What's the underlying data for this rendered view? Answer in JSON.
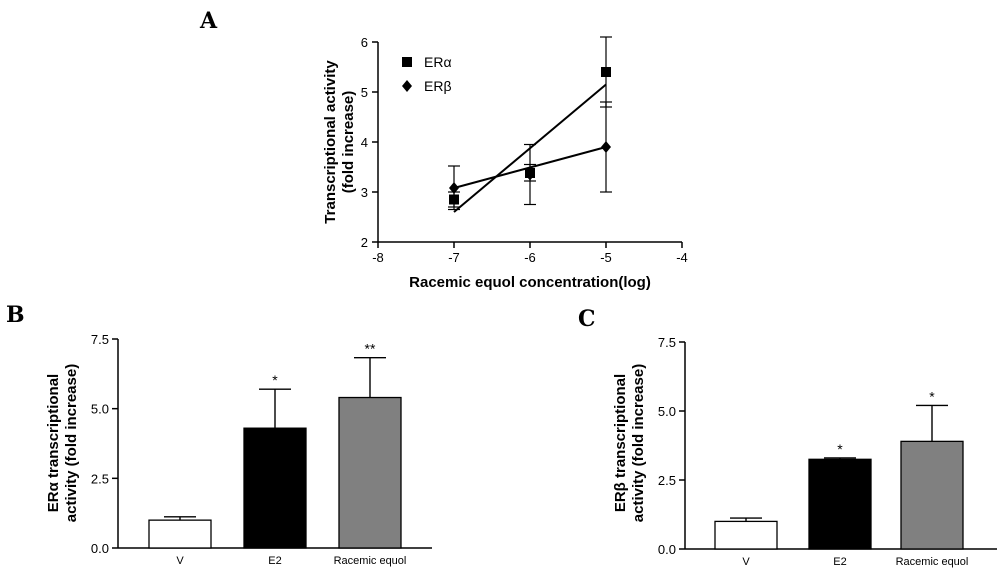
{
  "chart_data": [
    {
      "panel": "A",
      "type": "scatter",
      "xlabel": "Racemic equol concentration(log)",
      "ylabel_lines": [
        "Transcriptional activity",
        "(fold increase)"
      ],
      "xlim": [
        -8,
        -4
      ],
      "ylim": [
        2,
        6
      ],
      "xticks": [
        "-8",
        "-7",
        "-6",
        "-5",
        "-4"
      ],
      "yticks": [
        "2",
        "3",
        "4",
        "5",
        "6"
      ],
      "series": [
        {
          "name": "ERα",
          "marker": "square",
          "x": [
            -7,
            -6,
            -5
          ],
          "y": [
            2.85,
            3.38,
            5.4
          ],
          "err_low": [
            2.7,
            3.22,
            4.7
          ],
          "err_high": [
            3.0,
            3.55,
            6.1
          ],
          "fit": {
            "x": [
              -7,
              -5
            ],
            "y": [
              2.6,
              5.15
            ]
          }
        },
        {
          "name": "ERβ",
          "marker": "diamond",
          "x": [
            -7,
            -6,
            -5
          ],
          "y": [
            3.08,
            3.35,
            3.9
          ],
          "err_low": [
            2.65,
            2.75,
            3.0
          ],
          "err_high": [
            3.52,
            3.95,
            4.8
          ],
          "fit": {
            "x": [
              -7,
              -5
            ],
            "y": [
              3.08,
              3.9
            ]
          }
        }
      ]
    },
    {
      "panel": "B",
      "type": "bar",
      "ylabel_lines": [
        "ERα transcriptional",
        "activity (fold increase)"
      ],
      "categories": [
        "V",
        "E2",
        "Racemic equol"
      ],
      "values": [
        1.0,
        4.3,
        5.4
      ],
      "errors": [
        0.12,
        1.4,
        1.43
      ],
      "significance": [
        "",
        "*",
        "**"
      ],
      "colors": [
        "#ffffff",
        "#000000",
        "#808080"
      ],
      "ylim": [
        0,
        7.5
      ],
      "yticks": [
        "0.0",
        "2.5",
        "5.0",
        "7.5"
      ]
    },
    {
      "panel": "C",
      "type": "bar",
      "ylabel_lines": [
        "ERβ transcriptional",
        "activity (fold increase)"
      ],
      "categories": [
        "V",
        "E2",
        "Racemic equol"
      ],
      "values": [
        1.0,
        3.25,
        3.9
      ],
      "errors": [
        0.12,
        0.05,
        1.3
      ],
      "significance": [
        "",
        "*",
        "*"
      ],
      "colors": [
        "#ffffff",
        "#000000",
        "#808080"
      ],
      "ylim": [
        0,
        7.5
      ],
      "yticks": [
        "0.0",
        "2.5",
        "5.0",
        "7.5"
      ]
    }
  ]
}
